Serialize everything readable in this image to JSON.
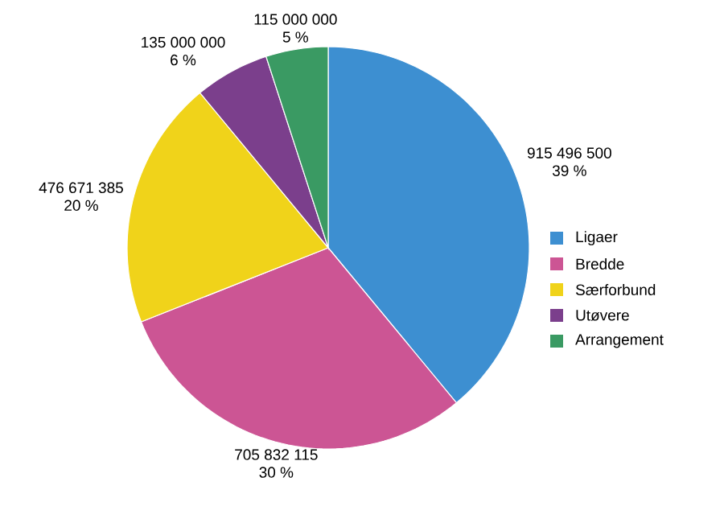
{
  "chart_data": {
    "type": "pie",
    "categories": [
      "Ligaer",
      "Bredde",
      "Særforbund",
      "Utøvere",
      "Arrangement"
    ],
    "values": [
      39,
      30,
      20,
      6,
      5
    ],
    "colors": [
      "#3d8fd1",
      "#cc5594",
      "#f0d31a",
      "#7b3f8c",
      "#3a9a63"
    ],
    "value_labels": [
      [
        "915 496 500",
        "39 %"
      ],
      [
        "705 832 115",
        "30 %"
      ],
      [
        "476 671 385",
        "20 %"
      ],
      [
        "135 000 000",
        "6 %"
      ],
      [
        "115 000 000",
        "5 %"
      ]
    ],
    "legend": "right"
  }
}
